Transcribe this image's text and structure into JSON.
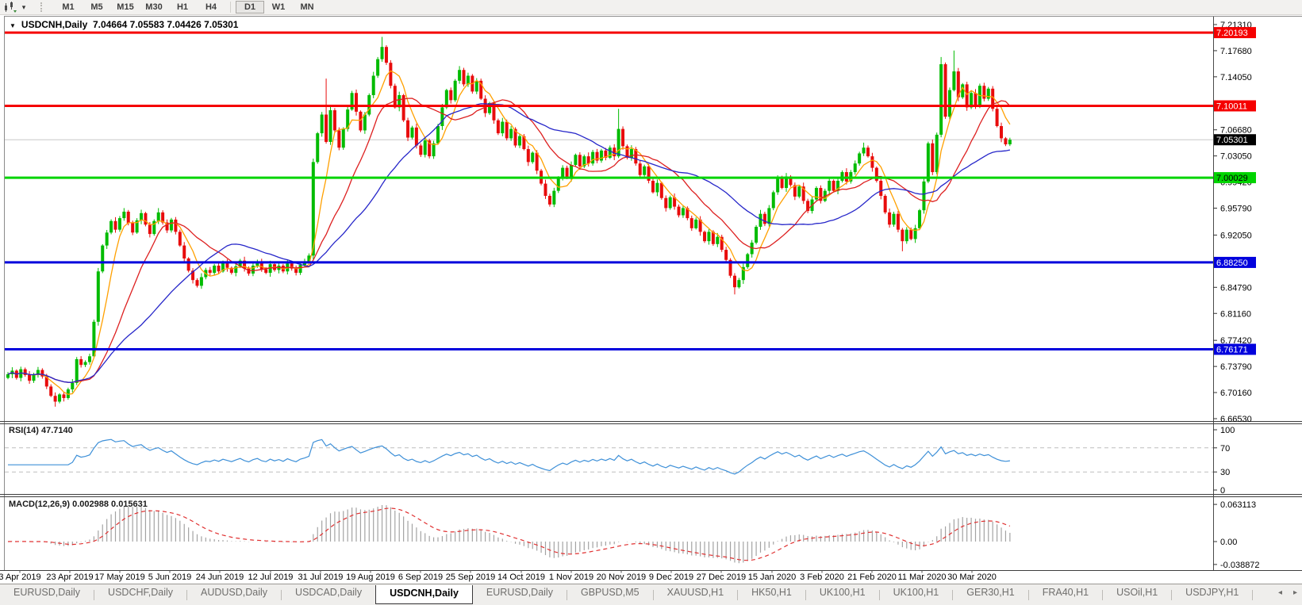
{
  "icons": {
    "dropdown_caret": "▾",
    "title_marker": "▼",
    "tab_scroll_left": "◂",
    "tab_scroll_right": "▸"
  },
  "toolbar": {
    "chart_type_icon": "candles-icon",
    "timeframes": [
      "M1",
      "M5",
      "M15",
      "M30",
      "H1",
      "H4",
      "D1",
      "W1",
      "MN"
    ],
    "active_timeframe": "D1"
  },
  "window": {
    "title_symbol": "USDCNH,Daily",
    "title_ohlc": "7.04664 7.05583 7.04426 7.05301"
  },
  "chart_data": {
    "type": "candlestick",
    "symbol": "USDCNH",
    "timeframe": "Daily",
    "last_bar": {
      "open": 7.04664,
      "high": 7.05583,
      "low": 7.04426,
      "close": 7.05301
    },
    "price_range": {
      "top": 7.2241,
      "bottom": 6.6631
    },
    "price_axis_ticks": [
      "7.21310",
      "7.17680",
      "7.14050",
      "7.06680",
      "7.03050",
      "6.99420",
      "6.95790",
      "6.92050",
      "6.84790",
      "6.81160",
      "6.77420",
      "6.73790",
      "6.70160",
      "6.66530"
    ],
    "x_axis_dates": [
      "3 Apr 2019",
      "23 Apr 2019",
      "17 May 2019",
      "5 Jun 2019",
      "24 Jun 2019",
      "12 Jul 2019",
      "31 Jul 2019",
      "19 Aug 2019",
      "6 Sep 2019",
      "25 Sep 2019",
      "14 Oct 2019",
      "1 Nov 2019",
      "20 Nov 2019",
      "9 Dec 2019",
      "27 Dec 2019",
      "15 Jan 2020",
      "3 Feb 2020",
      "21 Feb 2020",
      "11 Mar 2020",
      "30 Mar 2020"
    ],
    "horizontal_lines": [
      {
        "price": 7.20193,
        "label": "7.20193",
        "color": "#F50000",
        "label_bg": "#F50000",
        "label_text_color": "#FFFFFF",
        "thickness": 3
      },
      {
        "price": 7.10011,
        "label": "7.10011",
        "color": "#F50000",
        "label_bg": "#F50000",
        "label_text_color": "#FFFFFF",
        "thickness": 3
      },
      {
        "price": 7.05301,
        "label": "7.05301",
        "color": "#C8C8C8",
        "label_bg": "#000000",
        "label_text_color": "#FFFFFF",
        "thickness": 1,
        "role": "current-price-line"
      },
      {
        "price": 7.00029,
        "label": "7.00029",
        "color": "#00D400",
        "label_bg": "#00D400",
        "label_text_color": "#000000",
        "thickness": 3
      },
      {
        "price": 6.8825,
        "label": "6.88250",
        "color": "#0202DD",
        "label_bg": "#0202DD",
        "label_text_color": "#FFFFFF",
        "thickness": 3
      },
      {
        "price": 6.76171,
        "label": "6.76171",
        "color": "#0202DD",
        "label_bg": "#0202DD",
        "label_text_color": "#FFFFFF",
        "thickness": 3
      }
    ],
    "bull_color": "#00BB00",
    "bear_color": "#E80C0C",
    "closes": [
      6.727,
      6.732,
      6.722,
      6.734,
      6.726,
      6.718,
      6.726,
      6.733,
      6.724,
      6.71,
      6.697,
      6.689,
      6.699,
      6.694,
      6.706,
      6.715,
      6.748,
      6.74,
      6.744,
      6.752,
      6.8,
      6.87,
      6.906,
      6.924,
      6.94,
      6.928,
      6.944,
      6.953,
      6.937,
      6.924,
      6.941,
      6.951,
      6.935,
      6.922,
      6.94,
      6.952,
      6.938,
      6.927,
      6.942,
      6.925,
      6.906,
      6.888,
      6.871,
      6.858,
      6.85,
      6.862,
      6.872,
      6.868,
      6.878,
      6.87,
      6.882,
      6.875,
      6.868,
      6.877,
      6.885,
      6.874,
      6.867,
      6.878,
      6.884,
      6.873,
      6.868,
      6.88,
      6.872,
      6.878,
      6.87,
      6.881,
      6.874,
      6.868,
      6.879,
      6.884,
      6.892,
      7.022,
      7.062,
      7.088,
      7.05,
      7.094,
      7.066,
      7.042,
      7.068,
      7.095,
      7.118,
      7.092,
      7.066,
      7.088,
      7.115,
      7.142,
      7.165,
      7.182,
      7.16,
      7.128,
      7.098,
      7.115,
      7.08,
      7.056,
      7.07,
      7.045,
      7.032,
      7.052,
      7.03,
      7.048,
      7.072,
      7.098,
      7.122,
      7.108,
      7.135,
      7.15,
      7.13,
      7.142,
      7.12,
      7.135,
      7.11,
      7.09,
      7.104,
      7.08,
      7.062,
      7.078,
      7.055,
      7.068,
      7.045,
      7.058,
      7.04,
      7.022,
      7.035,
      7.01,
      6.992,
      6.975,
      6.963,
      6.982,
      7.0,
      7.014,
      7.0,
      7.018,
      7.032,
      7.016,
      7.03,
      7.02,
      7.036,
      7.024,
      7.038,
      7.028,
      7.042,
      7.03,
      7.068,
      7.044,
      7.028,
      7.04,
      7.02,
      7.004,
      7.016,
      6.996,
      6.98,
      6.993,
      6.972,
      6.958,
      6.973,
      6.96,
      6.948,
      6.958,
      6.944,
      6.93,
      6.942,
      6.925,
      6.912,
      6.925,
      6.908,
      6.918,
      6.9,
      6.886,
      6.864,
      6.848,
      6.858,
      6.876,
      6.894,
      6.91,
      6.932,
      6.95,
      6.936,
      6.958,
      6.98,
      7.0,
      6.986,
      7.002,
      6.99,
      6.974,
      6.988,
      6.968,
      6.954,
      6.97,
      6.986,
      6.968,
      6.982,
      6.996,
      6.982,
      6.996,
      7.008,
      6.995,
      7.008,
      7.02,
      7.034,
      7.042,
      7.03,
      7.014,
      6.996,
      6.975,
      6.952,
      6.935,
      6.95,
      6.928,
      6.912,
      6.928,
      6.915,
      6.93,
      6.955,
      6.995,
      7.048,
      7.008,
      7.06,
      7.158,
      7.085,
      7.122,
      7.148,
      7.112,
      7.13,
      7.098,
      7.118,
      7.1,
      7.128,
      7.11,
      7.124,
      7.096,
      7.072,
      7.055,
      7.0466,
      7.05301
    ],
    "wick_pattern": [
      0.005,
      0.008,
      0.003,
      0.006,
      0.004,
      0.009,
      0.005,
      0.007,
      0.004,
      0.006
    ],
    "wick_overrides": {
      "11": [
        null,
        6.682
      ],
      "27": [
        6.958,
        null
      ],
      "35": [
        6.958,
        null
      ],
      "74": [
        7.138,
        null
      ],
      "87": [
        7.196,
        null
      ],
      "142": [
        7.096,
        null
      ],
      "169": [
        null,
        6.838
      ],
      "199": [
        7.049,
        null
      ],
      "208": [
        null,
        6.898
      ],
      "217": [
        7.168,
        null
      ],
      "220": [
        7.177,
        null
      ]
    },
    "moving_averages": [
      {
        "name": "fast",
        "period": 6,
        "color": "#FFA000"
      },
      {
        "name": "mid",
        "period": 16,
        "color": "#DD2020"
      },
      {
        "name": "slow",
        "period": 32,
        "color": "#2626C9"
      }
    ],
    "rsi": {
      "label": "RSI(14) 47.7140",
      "period": 14,
      "color": "#3E90D8",
      "axis_labels": [
        "100",
        "70",
        "30",
        "0"
      ],
      "axis_values": [
        100,
        70,
        30,
        0
      ],
      "dashed_levels": [
        70,
        30
      ],
      "dash_color": "#BDBDBD"
    },
    "macd": {
      "label": "MACD(12,26,9) 0.002988 0.015631",
      "fast": 12,
      "slow": 26,
      "signal_period": 9,
      "histogram_color": "#A3A3A3",
      "signal_color": "#E03030",
      "axis_labels": [
        "0.063113",
        "0.00",
        "-0.038872"
      ],
      "axis_values": [
        0.063113,
        0,
        -0.038872
      ]
    }
  },
  "tabs": {
    "items": [
      "EURUSD,Daily",
      "USDCHF,Daily",
      "AUDUSD,Daily",
      "USDCAD,Daily",
      "USDCNH,Daily",
      "EURUSD,Daily",
      "GBPUSD,M5",
      "XAUUSD,H1",
      "HK50,H1",
      "UK100,H1",
      "UK100,H1",
      "GER30,H1",
      "FRA40,H1",
      "USOil,H1",
      "USDJPY,H1"
    ],
    "active_index": 4
  }
}
